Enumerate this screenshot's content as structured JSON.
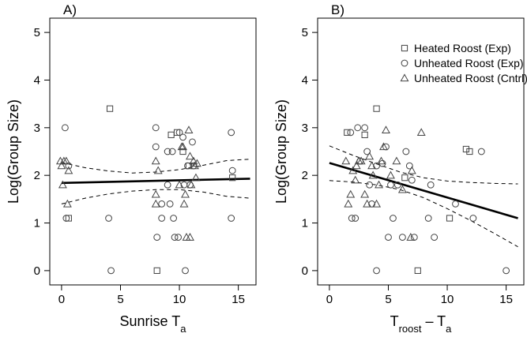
{
  "chart_data": [
    {
      "panel_label": "A)",
      "type": "scatter",
      "ylabel": "Log(Group Size)",
      "xlabel_main": "Sunrise T",
      "xlabel_sub": "a",
      "xlim": [
        -1,
        16.5
      ],
      "ylim": [
        -0.3,
        5.3
      ],
      "xticks": [
        "0",
        "5",
        "10",
        "15"
      ],
      "xtick_values": [
        0,
        5,
        10,
        15
      ],
      "yticks": [
        "0",
        "1",
        "2",
        "3",
        "4",
        "5"
      ],
      "ytick_values": [
        0,
        1,
        2,
        3,
        4,
        5
      ],
      "series": [
        {
          "marker": "square",
          "points": [
            [
              4.1,
              3.4
            ],
            [
              8.1,
              0.0
            ],
            [
              9.3,
              2.85
            ],
            [
              9.8,
              2.9
            ],
            [
              10.3,
              2.5
            ],
            [
              14.5,
              1.95
            ],
            [
              0.6,
              1.1
            ],
            [
              10.8,
              2.2
            ]
          ]
        },
        {
          "marker": "circle",
          "points": [
            [
              0.3,
              3.0
            ],
            [
              0.4,
              1.1
            ],
            [
              0.6,
              2.2
            ],
            [
              4.0,
              1.1
            ],
            [
              4.2,
              0.0
            ],
            [
              8.0,
              3.0
            ],
            [
              8.0,
              2.6
            ],
            [
              8.1,
              0.7
            ],
            [
              8.5,
              1.1
            ],
            [
              8.5,
              1.4
            ],
            [
              9.0,
              2.5
            ],
            [
              9.0,
              1.8
            ],
            [
              9.2,
              1.4
            ],
            [
              9.4,
              2.5
            ],
            [
              9.5,
              1.1
            ],
            [
              9.6,
              0.7
            ],
            [
              9.9,
              0.7
            ],
            [
              10.0,
              2.9
            ],
            [
              10.3,
              2.8
            ],
            [
              10.4,
              1.8
            ],
            [
              10.5,
              0.0
            ],
            [
              10.7,
              2.2
            ],
            [
              10.9,
              1.8
            ],
            [
              11.1,
              2.7
            ],
            [
              11.2,
              2.2
            ],
            [
              14.4,
              2.9
            ],
            [
              14.5,
              2.1
            ],
            [
              14.4,
              1.1
            ]
          ]
        },
        {
          "marker": "triangle",
          "points": [
            [
              -0.1,
              2.3
            ],
            [
              0.0,
              2.2
            ],
            [
              0.1,
              1.8
            ],
            [
              0.2,
              2.3
            ],
            [
              0.4,
              2.3
            ],
            [
              0.6,
              2.1
            ],
            [
              0.5,
              1.4
            ],
            [
              8.0,
              2.3
            ],
            [
              8.0,
              1.6
            ],
            [
              8.0,
              1.4
            ],
            [
              8.2,
              2.1
            ],
            [
              10.0,
              1.8
            ],
            [
              10.2,
              2.6
            ],
            [
              10.3,
              2.6
            ],
            [
              10.4,
              1.4
            ],
            [
              10.5,
              1.6
            ],
            [
              10.6,
              0.7
            ],
            [
              10.8,
              2.95
            ],
            [
              10.9,
              2.4
            ],
            [
              10.9,
              0.7
            ],
            [
              11.0,
              1.8
            ],
            [
              11.2,
              2.3
            ],
            [
              11.3,
              2.2
            ],
            [
              11.4,
              1.95
            ],
            [
              11.5,
              2.25
            ]
          ]
        }
      ],
      "fit_line": {
        "x": [
          0,
          16
        ],
        "y": [
          1.84,
          1.93
        ]
      },
      "ci_upper": {
        "x": [
          0,
          2,
          4,
          6,
          8,
          10,
          12,
          14,
          16
        ],
        "y": [
          2.27,
          2.16,
          2.09,
          2.05,
          2.07,
          2.12,
          2.21,
          2.31,
          2.34
        ]
      },
      "ci_lower": {
        "x": [
          0,
          2,
          4,
          6,
          8,
          10,
          12,
          14,
          16
        ],
        "y": [
          1.4,
          1.52,
          1.61,
          1.67,
          1.7,
          1.7,
          1.65,
          1.56,
          1.52
        ]
      }
    },
    {
      "panel_label": "B)",
      "type": "scatter",
      "ylabel": "Log(Group Size)",
      "xlabel_main": "T",
      "xlabel_sub": "roost",
      "xlabel_mid": " – T",
      "xlabel_sub2": "a",
      "xlim": [
        -1,
        16.5
      ],
      "ylim": [
        -0.3,
        5.3
      ],
      "xticks": [
        "0",
        "5",
        "10",
        "15"
      ],
      "xtick_values": [
        0,
        5,
        10,
        15
      ],
      "yticks": [
        "0",
        "1",
        "2",
        "3",
        "4",
        "5"
      ],
      "ytick_values": [
        0,
        1,
        2,
        3,
        4,
        5
      ],
      "legend_position": "top-right",
      "legend": [
        "Heated Roost (Exp)",
        "Unheated Roost (Exp)",
        "Unheated Roost (Cntrl)"
      ],
      "series": [
        {
          "marker": "square",
          "points": [
            [
              1.5,
              2.9
            ],
            [
              3.0,
              2.85
            ],
            [
              4.0,
              3.4
            ],
            [
              6.4,
              1.95
            ],
            [
              7.5,
              0.0
            ],
            [
              10.2,
              1.1
            ],
            [
              11.6,
              2.55
            ],
            [
              11.9,
              2.5
            ]
          ]
        },
        {
          "marker": "circle",
          "points": [
            [
              1.8,
              2.9
            ],
            [
              1.9,
              1.1
            ],
            [
              2.2,
              1.1
            ],
            [
              2.4,
              3.0
            ],
            [
              2.6,
              2.3
            ],
            [
              3.0,
              3.0
            ],
            [
              3.2,
              2.5
            ],
            [
              3.4,
              1.8
            ],
            [
              3.6,
              1.4
            ],
            [
              4.0,
              2.2
            ],
            [
              4.0,
              0.0
            ],
            [
              4.5,
              2.25
            ],
            [
              4.8,
              2.6
            ],
            [
              5.0,
              0.7
            ],
            [
              5.2,
              1.8
            ],
            [
              5.4,
              1.1
            ],
            [
              5.8,
              1.8
            ],
            [
              6.2,
              0.7
            ],
            [
              6.5,
              2.5
            ],
            [
              6.8,
              2.2
            ],
            [
              7.0,
              1.9
            ],
            [
              7.2,
              0.7
            ],
            [
              8.4,
              1.1
            ],
            [
              8.6,
              1.8
            ],
            [
              8.9,
              0.7
            ],
            [
              10.7,
              1.4
            ],
            [
              12.2,
              1.1
            ],
            [
              12.9,
              2.5
            ],
            [
              15.0,
              0.0
            ]
          ]
        },
        {
          "marker": "triangle",
          "points": [
            [
              1.4,
              2.3
            ],
            [
              1.6,
              1.4
            ],
            [
              1.8,
              1.6
            ],
            [
              2.0,
              2.1
            ],
            [
              2.2,
              1.9
            ],
            [
              2.3,
              2.2
            ],
            [
              2.5,
              2.3
            ],
            [
              2.7,
              2.3
            ],
            [
              3.0,
              1.6
            ],
            [
              3.2,
              1.4
            ],
            [
              3.4,
              2.4
            ],
            [
              3.6,
              2.2
            ],
            [
              3.7,
              2.0
            ],
            [
              4.0,
              1.4
            ],
            [
              4.2,
              1.8
            ],
            [
              4.4,
              2.3
            ],
            [
              4.6,
              2.6
            ],
            [
              4.8,
              2.95
            ],
            [
              5.2,
              2.0
            ],
            [
              5.7,
              2.3
            ],
            [
              6.2,
              1.7
            ],
            [
              6.9,
              0.7
            ],
            [
              7.0,
              2.1
            ],
            [
              7.8,
              2.9
            ]
          ]
        }
      ],
      "fit_line": {
        "x": [
          0,
          16
        ],
        "y": [
          2.26,
          1.1
        ]
      },
      "ci_upper": {
        "x": [
          0,
          2,
          4,
          6,
          8,
          10,
          12,
          14,
          16
        ],
        "y": [
          2.62,
          2.42,
          2.24,
          2.07,
          1.95,
          1.88,
          1.85,
          1.83,
          1.82
        ]
      },
      "ci_lower": {
        "x": [
          0,
          2,
          4,
          6,
          8,
          10,
          12,
          14,
          16
        ],
        "y": [
          1.89,
          1.86,
          1.8,
          1.7,
          1.53,
          1.3,
          1.05,
          0.78,
          0.5
        ]
      }
    }
  ]
}
